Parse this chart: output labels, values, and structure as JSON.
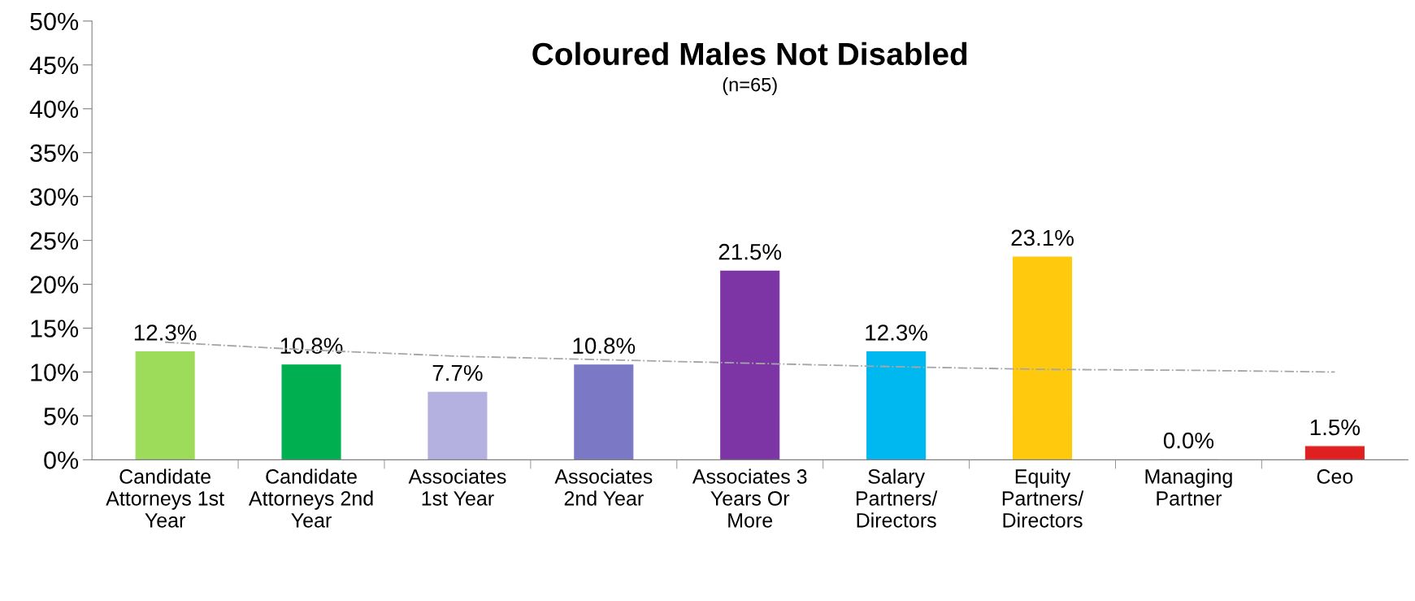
{
  "chart_data": {
    "type": "bar",
    "title": "Coloured Males Not Disabled",
    "subtitle": "(n=65)",
    "categories": [
      "Candidate\nAttorneys 1st\nYear",
      "Candidate\nAttorneys 2nd\nYear",
      "Associates\n1st Year",
      "Associates\n2nd Year",
      "Associates 3\nYears Or\nMore",
      "Salary\nPartners/\nDirectors",
      "Equity\nPartners/\nDirectors",
      "Managing\nPartner",
      "Ceo"
    ],
    "series": [
      {
        "values": [
          12.3,
          10.8,
          7.7,
          10.8,
          21.5,
          12.3,
          23.1,
          0.0,
          1.5
        ],
        "colors": [
          "#9ddc5a",
          "#00b050",
          "#b4b0e0",
          "#7b78c6",
          "#7d35a6",
          "#00b8f0",
          "#ffc90e",
          "#c0c0c0",
          "#e02020"
        ],
        "value_labels": [
          "12.3%",
          "10.8%",
          "7.7%",
          "10.8%",
          "21.5%",
          "12.3%",
          "23.1%",
          "0.0%",
          "1.5%"
        ]
      },
      {
        "type": "line",
        "color": "#a6a6a6",
        "line_style": "dashed",
        "values": [
          13.4,
          12.5,
          11.8,
          11.4,
          11.0,
          10.6,
          10.3,
          10.2,
          10.0
        ]
      }
    ],
    "ylim": [
      0,
      50
    ],
    "yticks": [
      {
        "value": 0,
        "label": "0%"
      },
      {
        "value": 5,
        "label": "5%"
      },
      {
        "value": 10,
        "label": "10%"
      },
      {
        "value": 15,
        "label": "15%"
      },
      {
        "value": 20,
        "label": "20%"
      },
      {
        "value": 25,
        "label": "25%"
      },
      {
        "value": 30,
        "label": "30%"
      },
      {
        "value": 35,
        "label": "35%"
      },
      {
        "value": 40,
        "label": "40%"
      },
      {
        "value": 45,
        "label": "45%"
      },
      {
        "value": 50,
        "label": "50%"
      }
    ],
    "grid": false
  }
}
